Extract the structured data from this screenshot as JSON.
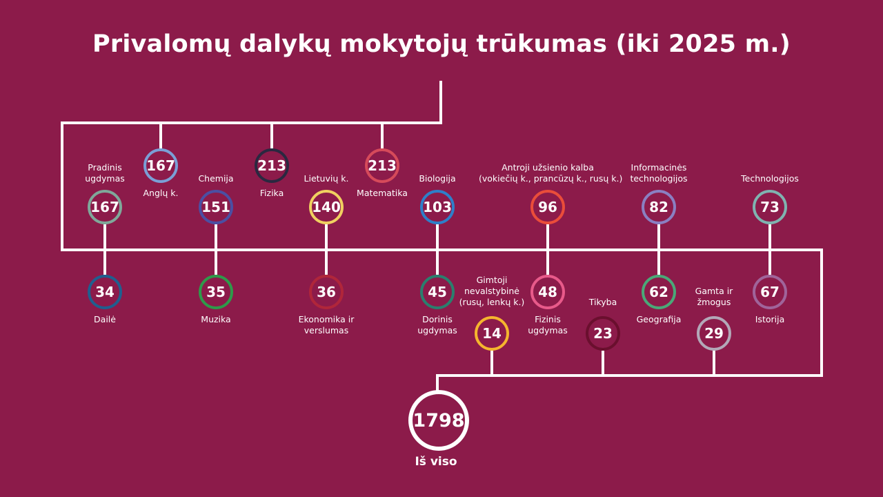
{
  "title": "Privalomų dalykų mokytojų trūkumas (iki 2025 m.)",
  "total": {
    "value": "1798",
    "label": "Iš viso",
    "color": "#ffffff"
  },
  "subjects": [
    {
      "id": "pradinis",
      "value": "167",
      "label": [
        "Pradinis",
        "ugdymas"
      ],
      "color": "#7fa89a"
    },
    {
      "id": "anglu",
      "value": "167",
      "label": [
        "Anglų k."
      ],
      "color": "#7a9fd6"
    },
    {
      "id": "chemija",
      "value": "151",
      "label": [
        "Chemija"
      ],
      "color": "#4b4fa3"
    },
    {
      "id": "fizika",
      "value": "213",
      "label": [
        "Fizika"
      ],
      "color": "#2a2840"
    },
    {
      "id": "lietuviu",
      "value": "140",
      "label": [
        "Lietuvių k."
      ],
      "color": "#f0d060"
    },
    {
      "id": "matematika",
      "value": "213",
      "label": [
        "Matematika"
      ],
      "color": "#d64a5a"
    },
    {
      "id": "biologija",
      "value": "103",
      "label": [
        "Biologija"
      ],
      "color": "#2e7fc9"
    },
    {
      "id": "antroji",
      "value": "96",
      "label": [
        "Antroji užsienio kalba",
        "(vokiečių k., prancūzų k., rusų k.)"
      ],
      "color": "#ea4d3a"
    },
    {
      "id": "informacines",
      "value": "82",
      "label": [
        "Informacinės",
        "technologijos"
      ],
      "color": "#8a7fc2"
    },
    {
      "id": "technologijos",
      "value": "73",
      "label": [
        "Technologijos"
      ],
      "color": "#7fb3b0"
    },
    {
      "id": "daile",
      "value": "34",
      "label": [
        "Dailė"
      ],
      "color": "#1f5f8f"
    },
    {
      "id": "muzika",
      "value": "35",
      "label": [
        "Muzika"
      ],
      "color": "#2e9a4a"
    },
    {
      "id": "ekonomika",
      "value": "36",
      "label": [
        "Ekonomika ir",
        "verslumas"
      ],
      "color": "#b0263a"
    },
    {
      "id": "dorinis",
      "value": "45",
      "label": [
        "Dorinis",
        "ugdymas"
      ],
      "color": "#2a7f6e"
    },
    {
      "id": "gimtoji",
      "value": "14",
      "label": [
        "Gimtoji",
        "nevalstybinė",
        "(rusų, lenkų k.)"
      ],
      "color": "#f5b52e"
    },
    {
      "id": "fizinis",
      "value": "48",
      "label": [
        "Fizinis",
        "ugdymas"
      ],
      "color": "#e85a8a"
    },
    {
      "id": "tikyba",
      "value": "23",
      "label": [
        "Tikyba"
      ],
      "color": "#6a0f2e"
    },
    {
      "id": "geografija",
      "value": "62",
      "label": [
        "Geografija"
      ],
      "color": "#4aa878"
    },
    {
      "id": "gamta",
      "value": "29",
      "label": [
        "Gamta ir",
        "žmogus"
      ],
      "color": "#b3a8b8"
    },
    {
      "id": "istorija",
      "value": "67",
      "label": [
        "Istorija"
      ],
      "color": "#a0649a"
    }
  ]
}
